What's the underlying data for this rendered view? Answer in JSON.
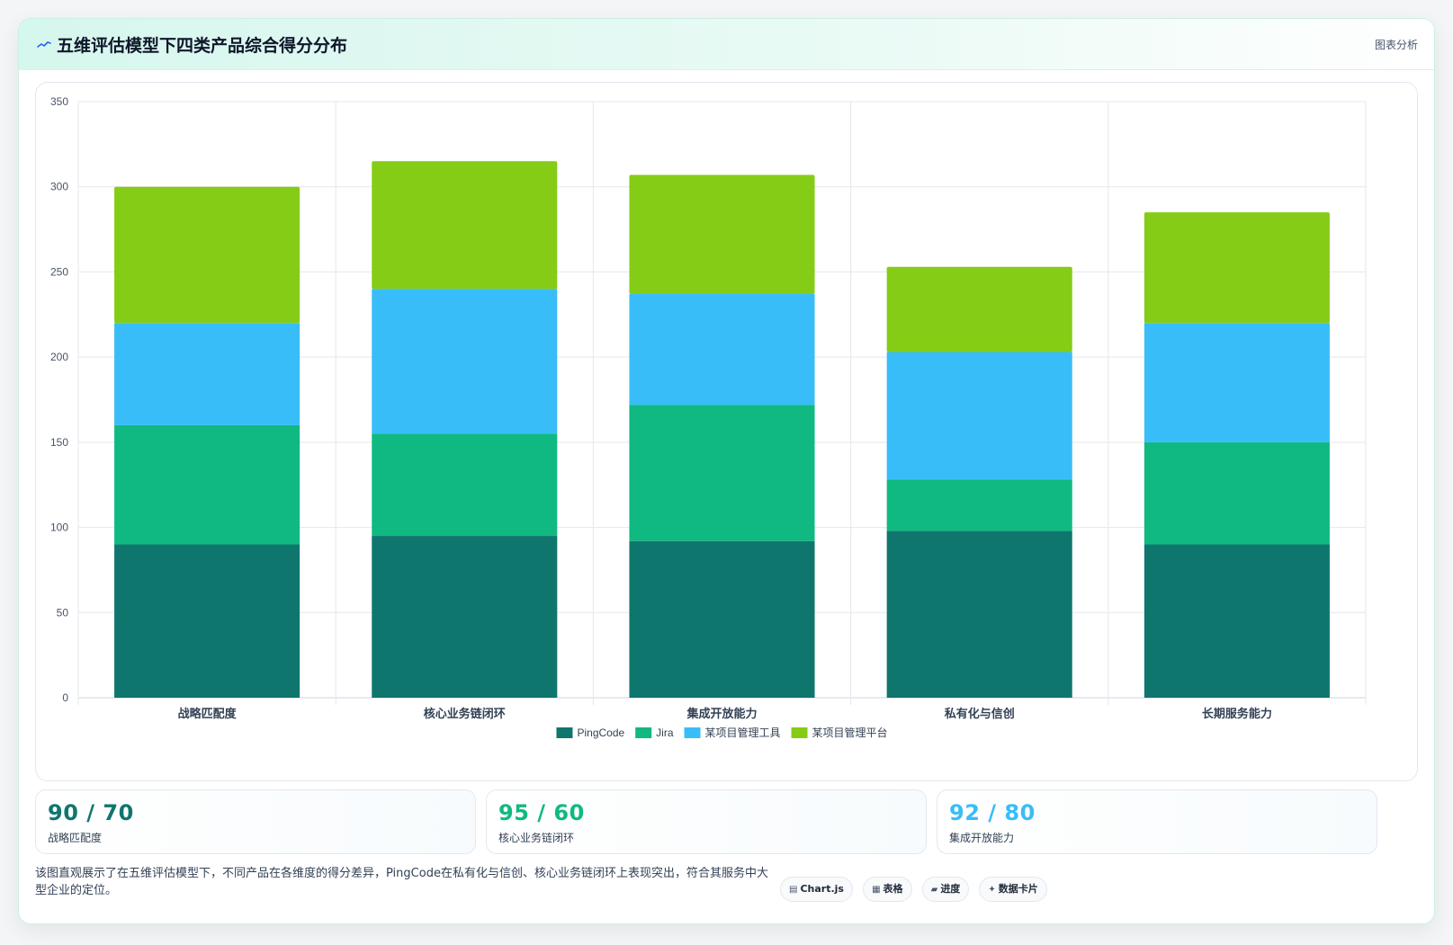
{
  "header": {
    "title": "五维评估模型下四类产品综合得分分布",
    "tag": "图表分析",
    "icon": "wave-icon"
  },
  "chart_data": {
    "type": "bar",
    "stacked": true,
    "categories": [
      "战略匹配度",
      "核心业务链闭环",
      "集成开放能力",
      "私有化与信创",
      "长期服务能力"
    ],
    "series": [
      {
        "name": "PingCode",
        "color": "#0f766e",
        "values": [
          90,
          95,
          92,
          98,
          90
        ]
      },
      {
        "name": "Jira",
        "color": "#10b981",
        "values": [
          70,
          60,
          80,
          30,
          60
        ]
      },
      {
        "name": "某项目管理工具",
        "color": "#38bdf8",
        "values": [
          60,
          85,
          65,
          75,
          70
        ]
      },
      {
        "name": "某项目管理平台",
        "color": "#84cc16",
        "values": [
          80,
          75,
          70,
          50,
          65
        ]
      }
    ],
    "ylim": [
      0,
      350
    ],
    "yticks": [
      0,
      50,
      100,
      150,
      200,
      250,
      300,
      350
    ],
    "grid": true,
    "legend": "bottom"
  },
  "stats": [
    {
      "value": "90 / 70",
      "label": "战略匹配度",
      "color": "#0f766e"
    },
    {
      "value": "95 / 60",
      "label": "核心业务链闭环",
      "color": "#10b981"
    },
    {
      "value": "92 / 80",
      "label": "集成开放能力",
      "color": "#38bdf8"
    }
  ],
  "description": "该图直观展示了在五维评估模型下，不同产品在各维度的得分差异，PingCode在私有化与信创、核心业务链闭环上表现突出，符合其服务中大型企业的定位。",
  "chips": [
    {
      "label": "Chart.js",
      "icon": "chart-icon"
    },
    {
      "label": "表格",
      "icon": "table-icon"
    },
    {
      "label": "进度",
      "icon": "progress-icon"
    },
    {
      "label": "数据卡片",
      "icon": "sparkle-icon"
    }
  ]
}
